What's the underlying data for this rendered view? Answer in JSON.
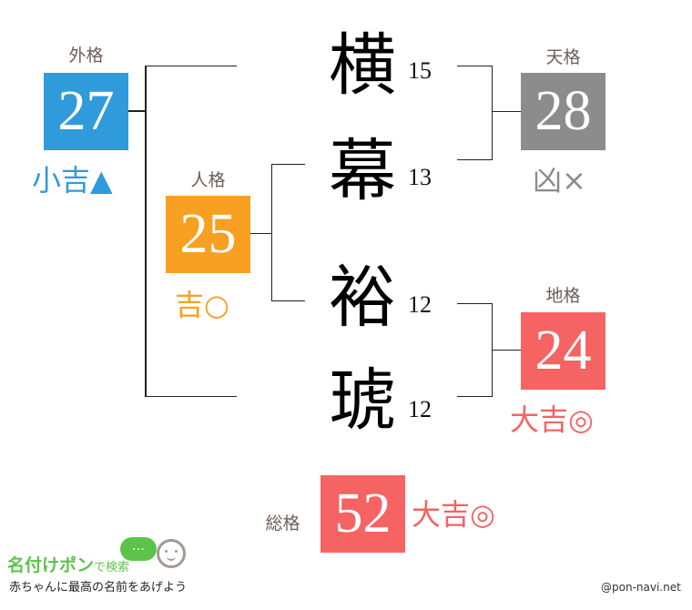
{
  "name_chars": [
    {
      "char": "横",
      "strokes": "15"
    },
    {
      "char": "幕",
      "strokes": "13"
    },
    {
      "char": "裕",
      "strokes": "12"
    },
    {
      "char": "琥",
      "strokes": "12"
    }
  ],
  "gaikaku": {
    "label": "外格",
    "value": "27",
    "fortune": "小吉▲",
    "color": "#2f9bdb"
  },
  "jinkaku": {
    "label": "人格",
    "value": "25",
    "fortune": "吉○",
    "color": "#f7a021"
  },
  "tenkaku": {
    "label": "天格",
    "value": "28",
    "fortune": "凶×",
    "color": "#8c8c8c"
  },
  "chikaku": {
    "label": "地格",
    "value": "24",
    "fortune": "大吉◎",
    "color": "#f56363"
  },
  "soukaku": {
    "label": "総格",
    "value": "52",
    "fortune": "大吉◎",
    "color": "#f56363"
  },
  "logo": {
    "title": "名付けポン",
    "title_suffix": "で検索",
    "tagline": "赤ちゃんに最高の名前をあげよう",
    "bubble": "…"
  },
  "credit": "@pon-navi.net"
}
